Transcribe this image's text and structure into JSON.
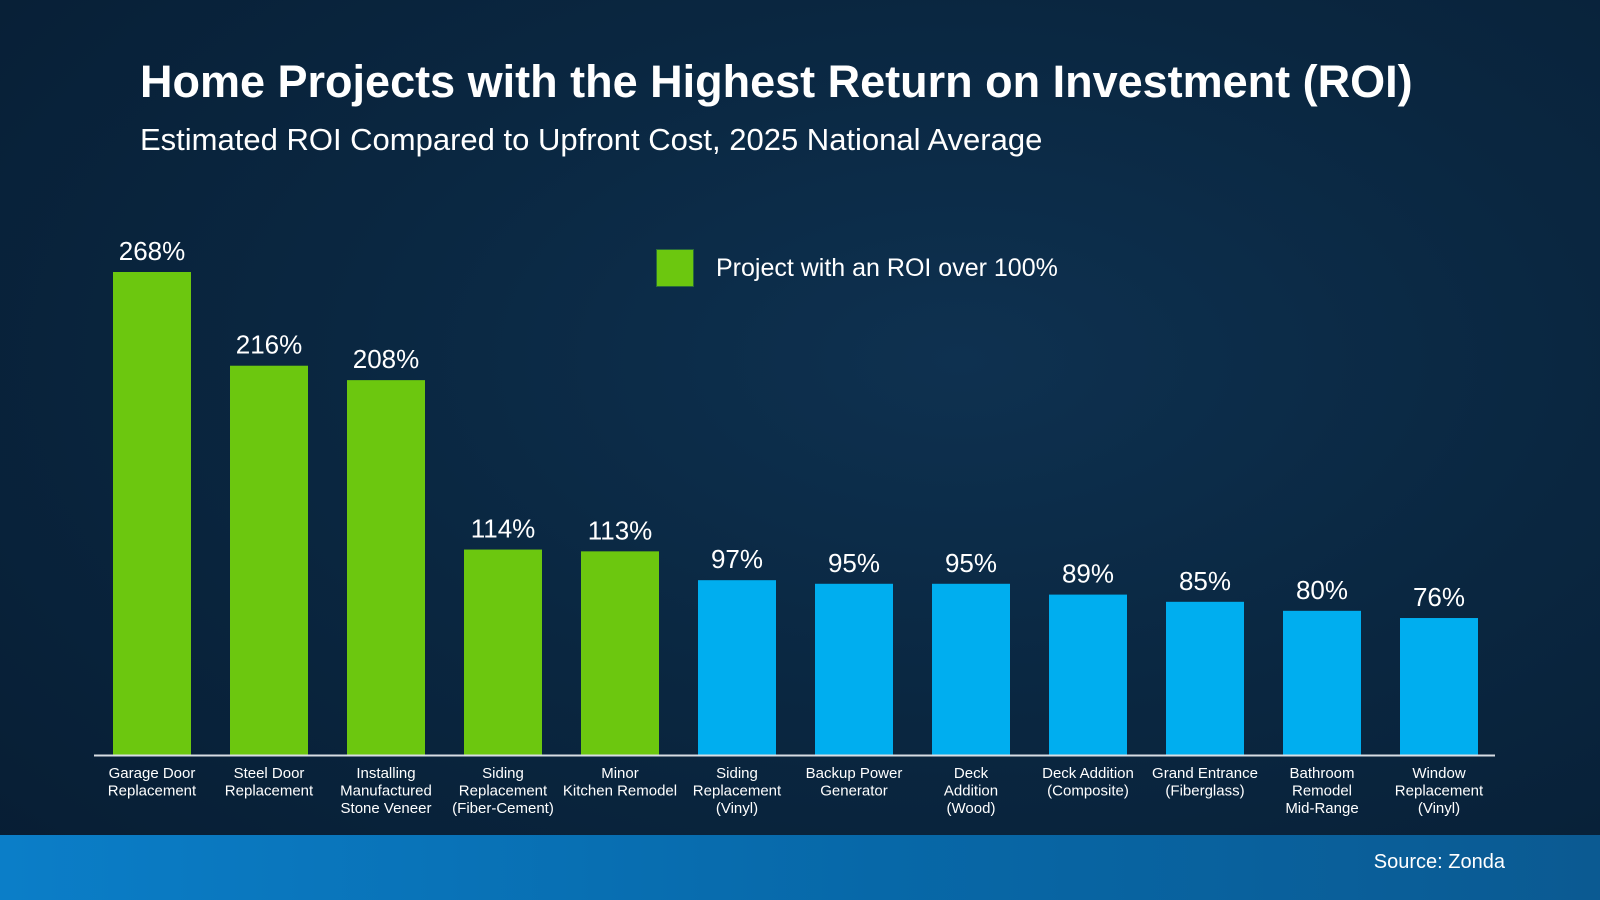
{
  "chart_data": {
    "type": "bar",
    "title": "Home Projects with the Highest Return on Investment (ROI)",
    "subtitle": "Estimated ROI Compared to Upfront Cost, 2025 National Average",
    "categories": [
      [
        "Garage Door",
        "Replacement"
      ],
      [
        "Steel Door",
        "Replacement"
      ],
      [
        "Installing",
        "Manufactured",
        "Stone Veneer"
      ],
      [
        "Siding",
        "Replacement",
        "(Fiber-Cement)"
      ],
      [
        "Minor",
        "Kitchen Remodel"
      ],
      [
        "Siding",
        "Replacement",
        "(Vinyl)"
      ],
      [
        "Backup Power",
        "Generator"
      ],
      [
        "Deck",
        "Addition",
        "(Wood)"
      ],
      [
        "Deck Addition",
        "(Composite)"
      ],
      [
        "Grand Entrance",
        "(Fiberglass)"
      ],
      [
        "Bathroom",
        "Remodel",
        "Mid-Range"
      ],
      [
        "Window",
        "Replacement",
        "(Vinyl)"
      ]
    ],
    "values": [
      268,
      216,
      208,
      114,
      113,
      97,
      95,
      95,
      89,
      85,
      80,
      76
    ],
    "value_labels": [
      "268%",
      "216%",
      "208%",
      "114%",
      "113%",
      "97%",
      "95%",
      "95%",
      "89%",
      "85%",
      "80%",
      "76%"
    ],
    "unit": "%",
    "ylim": [
      0,
      268
    ],
    "grid": false,
    "colors": {
      "over_100": "#6cc70f",
      "under_100": "#00aeef"
    },
    "legend": {
      "label": "Project with an ROI over 100%",
      "placement": "top-center"
    },
    "source": "Source: Zonda"
  }
}
